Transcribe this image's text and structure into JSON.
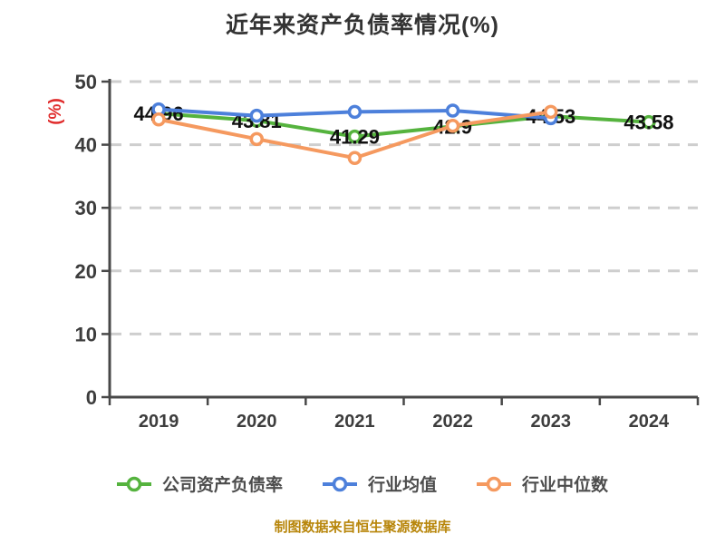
{
  "title": "近年来资产负债率情况(%)",
  "y_axis_unit": "(%)",
  "footer": "制图数据来自恒生聚源数据库",
  "colors": {
    "title_text": "#333333",
    "axis_line": "#484848",
    "tick_text": "#3d3d3d",
    "grid_line": "#cecece",
    "data_label": "#111111",
    "legend_text": "#4c4c4c",
    "y_unit_red": "#e02b2b",
    "footer_gold": "#b8860b",
    "series_company_green": "#55b33e",
    "series_avg_blue": "#4d80db",
    "series_median_orange": "#f5995f"
  },
  "chart_data": {
    "type": "line",
    "title": "近年来资产负债率情况(%)",
    "xlabel": "",
    "ylabel": "(%)",
    "categories": [
      "2019",
      "2020",
      "2021",
      "2022",
      "2023",
      "2024"
    ],
    "series": [
      {
        "name": "公司资产负债率",
        "color": "#55b33e",
        "values": [
          44.96,
          43.81,
          41.29,
          42.9,
          44.53,
          43.58
        ],
        "labels": [
          "44.96",
          "43.81",
          "41.29",
          "42.9",
          "44.53",
          "43.58"
        ]
      },
      {
        "name": "行业均值",
        "color": "#4d80db",
        "values": [
          45.6,
          44.6,
          45.2,
          45.4,
          44.2,
          null
        ],
        "labels": null
      },
      {
        "name": "行业中位数",
        "color": "#f5995f",
        "values": [
          44.0,
          40.9,
          37.9,
          43.0,
          45.2,
          null
        ],
        "labels": null
      }
    ],
    "ylim": [
      0,
      50
    ],
    "yticks": [
      0,
      10,
      20,
      30,
      40,
      50
    ],
    "grid": "horizontal-dashed",
    "legend_position": "bottom",
    "marker_style": "circle-white-fill"
  }
}
